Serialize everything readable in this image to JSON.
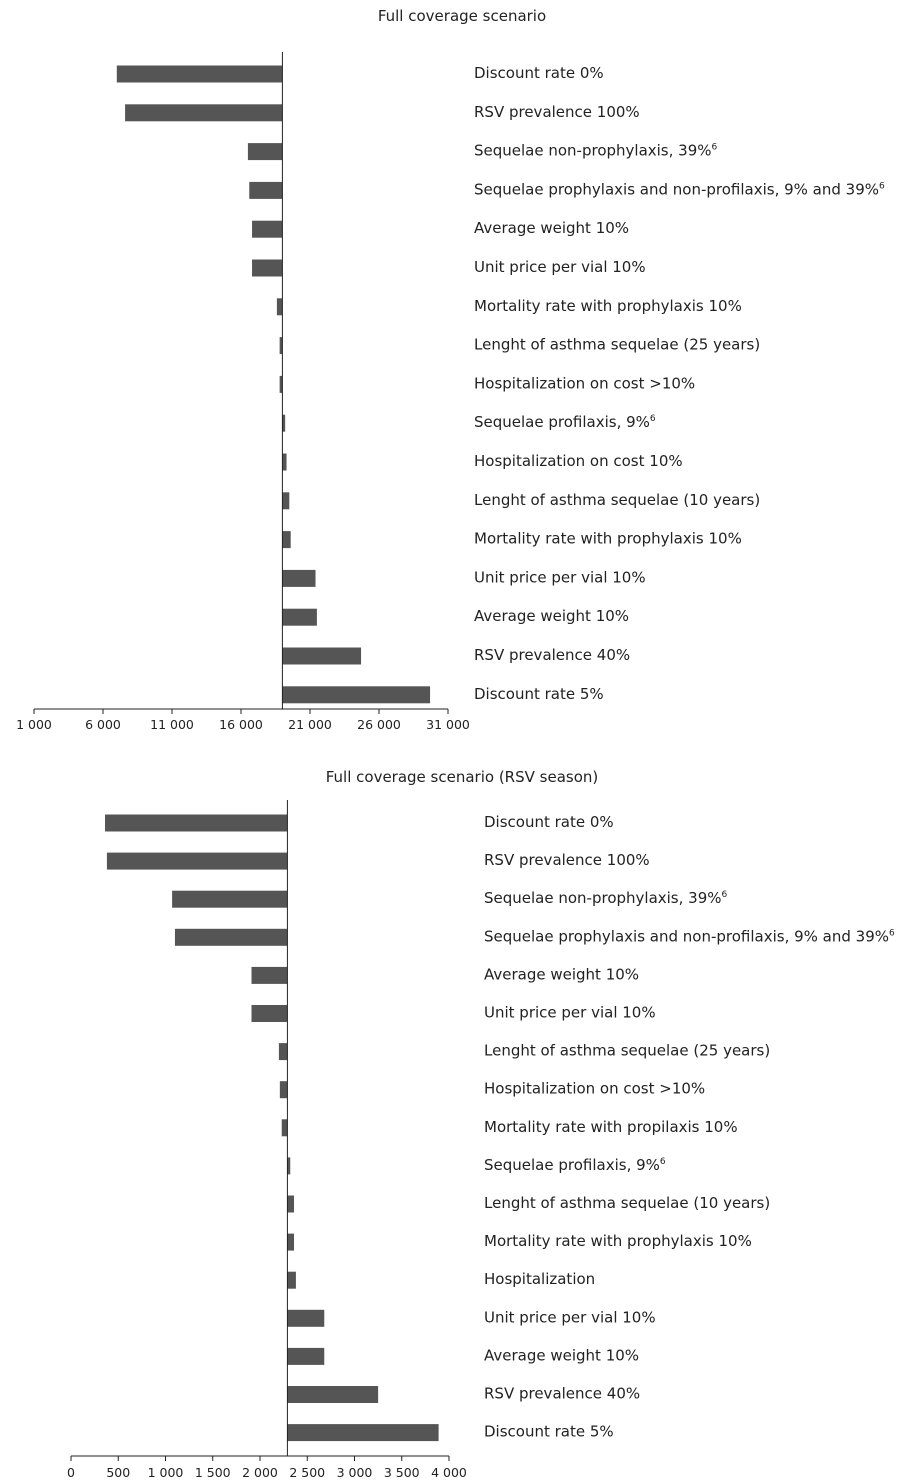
{
  "chart_data": [
    {
      "type": "bar",
      "orientation": "horizontal",
      "title": "Full coverage scenario",
      "base_value": 19000,
      "xlim": [
        1000,
        31000
      ],
      "x_ticks": [
        "1 000",
        "6 000",
        "11 000",
        "16 000",
        "21 000",
        "26 000",
        "31 000"
      ],
      "x_tick_values": [
        1000,
        6000,
        11000,
        16000,
        21000,
        26000,
        31000
      ],
      "grid": false,
      "bars": [
        {
          "label": "Discount rate 0%",
          "sup": "",
          "value": 7000
        },
        {
          "label": "RSV prevalence 100%",
          "sup": "",
          "value": 7600
        },
        {
          "label": "Sequelae non-prophylaxis, 39%",
          "sup": "6",
          "value": 16500
        },
        {
          "label": "Sequelae prophylaxis and non-profilaxis, 9% and 39%",
          "sup": "6",
          "value": 16600
        },
        {
          "label": "Average weight 10%",
          "sup": "",
          "value": 16800
        },
        {
          "label": "Unit price per vial 10%",
          "sup": "",
          "value": 16800
        },
        {
          "label": "Mortality rate with prophylaxis 10%",
          "sup": "",
          "value": 18600
        },
        {
          "label": "Lenght of asthma sequelae (25 years)",
          "sup": "",
          "value": 18800
        },
        {
          "label": "Hospitalization on cost >10%",
          "sup": "",
          "value": 18800
        },
        {
          "label": "Sequelae profilaxis, 9%",
          "sup": "6",
          "value": 19200
        },
        {
          "label": "Hospitalization on cost 10%",
          "sup": "",
          "value": 19300
        },
        {
          "label": "Lenght of asthma sequelae (10 years)",
          "sup": "",
          "value": 19500
        },
        {
          "label": "Mortality rate with prophylaxis 10%",
          "sup": "",
          "value": 19600
        },
        {
          "label": "Unit price per vial 10%",
          "sup": "",
          "value": 21400
        },
        {
          "label": "Average weight 10%",
          "sup": "",
          "value": 21500
        },
        {
          "label": "RSV prevalence 40%",
          "sup": "",
          "value": 24700
        },
        {
          "label": "Discount rate 5%",
          "sup": "",
          "value": 29700
        }
      ]
    },
    {
      "type": "bar",
      "orientation": "horizontal",
      "title": "Full coverage scenario (RSV season)",
      "base_value": 2290,
      "xlim": [
        0,
        4000
      ],
      "x_ticks": [
        "0",
        "500",
        "1 000",
        "1 500",
        "2 000",
        "2 500",
        "3 000",
        "3 500",
        "4 000"
      ],
      "x_tick_values": [
        0,
        500,
        1000,
        1500,
        2000,
        2500,
        3000,
        3500,
        4000
      ],
      "grid": false,
      "bars": [
        {
          "label": "Discount rate 0%",
          "sup": "",
          "value": 360
        },
        {
          "label": "RSV prevalence 100%",
          "sup": "",
          "value": 380
        },
        {
          "label": "Sequelae non-prophylaxis, 39%",
          "sup": "6",
          "value": 1070
        },
        {
          "label": "Sequelae prophylaxis and non-profilaxis, 9% and 39%",
          "sup": "6",
          "value": 1100
        },
        {
          "label": "Average weight 10%",
          "sup": "",
          "value": 1910
        },
        {
          "label": "Unit price per vial 10%",
          "sup": "",
          "value": 1910
        },
        {
          "label": "Lenght of asthma sequelae (25 years)",
          "sup": "",
          "value": 2200
        },
        {
          "label": "Hospitalization on cost >10%",
          "sup": "",
          "value": 2210
        },
        {
          "label": "Mortality rate with propilaxis 10%",
          "sup": "",
          "value": 2230
        },
        {
          "label": "Sequelae profilaxis, 9%",
          "sup": "6",
          "value": 2320
        },
        {
          "label": "Lenght of asthma sequelae (10 years)",
          "sup": "",
          "value": 2360
        },
        {
          "label": "Mortality rate with prophylaxis 10%",
          "sup": "",
          "value": 2360
        },
        {
          "label": "Hospitalization",
          "sup": "",
          "value": 2380
        },
        {
          "label": "Unit price per vial 10%",
          "sup": "",
          "value": 2680
        },
        {
          "label": "Average weight 10%",
          "sup": "",
          "value": 2680
        },
        {
          "label": "RSV prevalence 40%",
          "sup": "",
          "value": 3250
        },
        {
          "label": "Discount rate 5%",
          "sup": "",
          "value": 3890
        }
      ]
    }
  ]
}
